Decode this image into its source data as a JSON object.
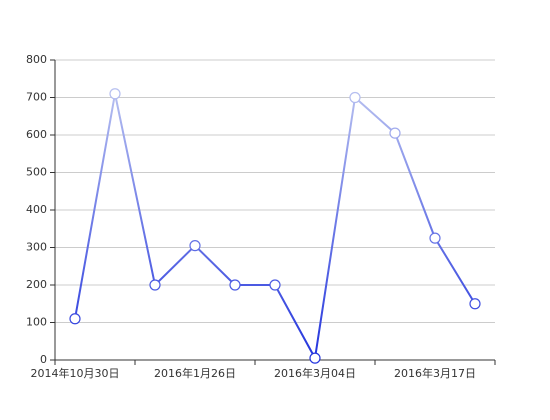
{
  "chart_data": {
    "type": "line",
    "categories": [
      "2014年10月30日",
      null,
      null,
      "2016年1月26日",
      null,
      null,
      "2016年3月04日",
      null,
      null,
      "2016年3月17日",
      null
    ],
    "values": [
      110,
      710,
      200,
      305,
      200,
      200,
      5,
      700,
      605,
      325,
      150
    ],
    "colors": [
      "#2233dd",
      "#c8d0f2"
    ],
    "ylim": [
      0,
      800
    ],
    "yticks": [
      0,
      100,
      200,
      300,
      400,
      500,
      600,
      700,
      800
    ],
    "grid": true
  }
}
